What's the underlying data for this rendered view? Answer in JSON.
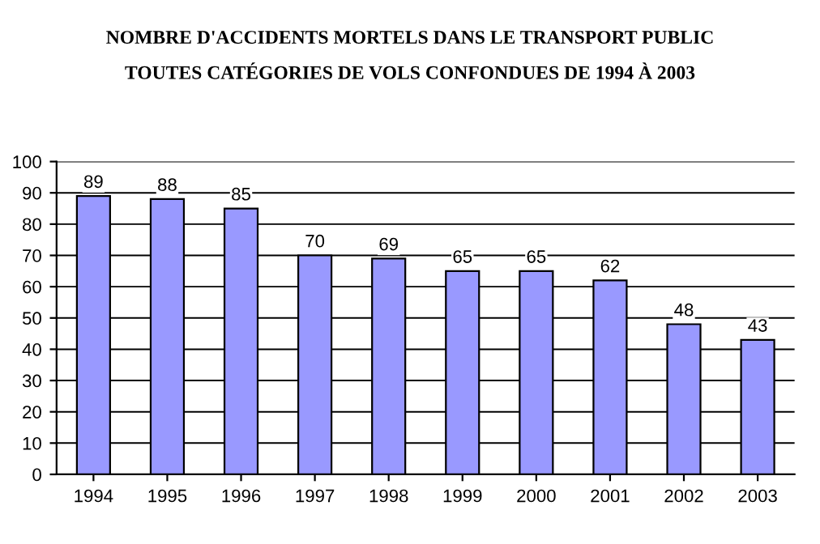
{
  "chart_data": {
    "type": "bar",
    "title": "NOMBRE D'ACCIDENTS MORTELS DANS LE TRANSPORT PUBLIC",
    "subtitle": "TOUTES CATÉGORIES DE VOLS CONFONDUES DE 1994 À 2003",
    "categories": [
      "1994",
      "1995",
      "1996",
      "1997",
      "1998",
      "1999",
      "2000",
      "2001",
      "2002",
      "2003"
    ],
    "values": [
      89,
      88,
      85,
      70,
      69,
      65,
      65,
      62,
      48,
      43
    ],
    "color": "#9999ff",
    "ylim": [
      0,
      100
    ],
    "yticks": [
      0,
      10,
      20,
      30,
      40,
      50,
      60,
      70,
      80,
      90,
      100
    ],
    "grid": "y",
    "data_labels": true
  }
}
